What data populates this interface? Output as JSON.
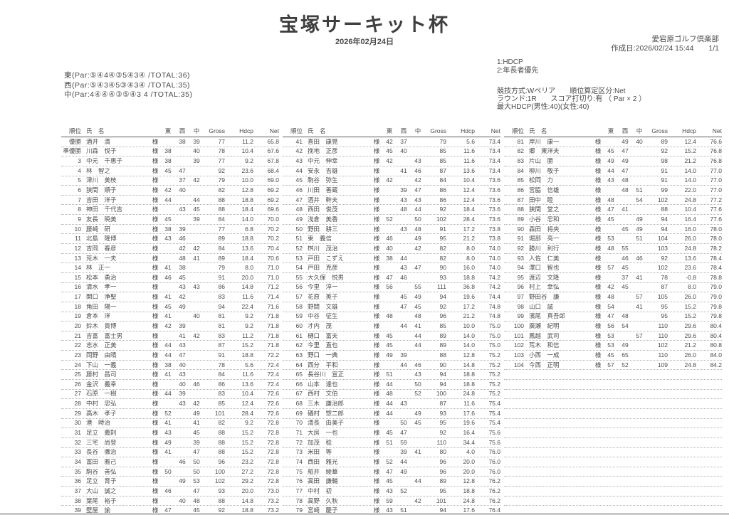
{
  "title": "宝塚サーキット杯",
  "date": "2026年02月24日",
  "club": "愛宕原ゴルフ倶楽部",
  "created": "作成日:2026/02/24 15:44",
  "page_number": "1/1",
  "tie_rules": {
    "line1": "1:HDCP",
    "line2": "2:年長者優先"
  },
  "course": {
    "east": "東(Par:⑤④4④③5④3④ /TOTAL:36)",
    "west": "西(Par:⑤④3④5③④3④ /TOTAL:35)",
    "center": "中(Par:4④④④③⑤④3 4 /TOTAL:35)"
  },
  "competition": {
    "method_line": "競技方式:Wペリア　　順位算定区分:Net",
    "round_line": "ラウンド:1R　　スコア打切り:有 （ Par × 2 ）",
    "hdcp_line": "最大HDCP(男性:40)(女性:40)"
  },
  "table": {
    "headers": {
      "rank": "順位",
      "name": "氏　名",
      "east": "東",
      "west": "西",
      "center": "中",
      "gross": "Gross",
      "hdcp": "Hdcp",
      "net": "Net"
    },
    "honorific": "様",
    "empty_rows_last_group": 16,
    "groups": [
      [
        [
          "優勝",
          "酒井　清",
          "",
          "38",
          "39",
          "77",
          "11.2",
          "65.8"
        ],
        [
          "準優勝",
          "川森　悦子",
          "38",
          "",
          "40",
          "78",
          "10.4",
          "67.6"
        ],
        [
          "3",
          "中元　千惠子",
          "38",
          "",
          "39",
          "77",
          "9.2",
          "67.8"
        ],
        [
          "4",
          "林　智之",
          "45",
          "47",
          "",
          "92",
          "23.6",
          "68.4"
        ],
        [
          "5",
          "津川　美枝",
          "",
          "37",
          "42",
          "79",
          "10.0",
          "69.0"
        ],
        [
          "6",
          "狭間　順子",
          "42",
          "40",
          "",
          "82",
          "12.8",
          "69.2"
        ],
        [
          "7",
          "吉田　洋子",
          "44",
          "",
          "44",
          "88",
          "18.8",
          "69.2"
        ],
        [
          "8",
          "神田　千代吉",
          "",
          "43",
          "45",
          "88",
          "18.4",
          "69.6"
        ],
        [
          "9",
          "友長　暁美",
          "45",
          "",
          "39",
          "84",
          "14.0",
          "70.0"
        ],
        [
          "10",
          "藤崎　研",
          "38",
          "39",
          "",
          "77",
          "6.8",
          "70.2"
        ],
        [
          "11",
          "北島　隆博",
          "43",
          "46",
          "",
          "89",
          "18.8",
          "70.2"
        ],
        [
          "12",
          "吉岡　春彦",
          "",
          "42",
          "42",
          "84",
          "13.6",
          "70.4"
        ],
        [
          "13",
          "荒木　一夫",
          "",
          "48",
          "41",
          "89",
          "18.4",
          "70.6"
        ],
        [
          "14",
          "林　正一",
          "41",
          "38",
          "",
          "79",
          "8.0",
          "71.0"
        ],
        [
          "15",
          "松本　勇治",
          "46",
          "45",
          "",
          "91",
          "20.0",
          "71.0"
        ],
        [
          "16",
          "清水　孝一",
          "",
          "43",
          "43",
          "86",
          "14.8",
          "71.2"
        ],
        [
          "17",
          "関口　浄聖",
          "41",
          "42",
          "",
          "83",
          "11.6",
          "71.4"
        ],
        [
          "18",
          "角田　陽一",
          "45",
          "49",
          "",
          "94",
          "22.4",
          "71.6"
        ],
        [
          "19",
          "倉本　洋",
          "41",
          "",
          "40",
          "81",
          "9.2",
          "71.8"
        ],
        [
          "20",
          "鈴木　貴博",
          "42",
          "39",
          "",
          "81",
          "9.2",
          "71.8"
        ],
        [
          "21",
          "吉富　富士男",
          "",
          "41",
          "42",
          "83",
          "11.2",
          "71.8"
        ],
        [
          "22",
          "志水　正美",
          "44",
          "43",
          "",
          "87",
          "15.2",
          "71.8"
        ],
        [
          "23",
          "岡野　由晴",
          "44",
          "47",
          "",
          "91",
          "18.8",
          "72.2"
        ],
        [
          "24",
          "下山　一義",
          "38",
          "40",
          "",
          "78",
          "5.6",
          "72.4"
        ],
        [
          "25",
          "藤村　昌司",
          "41",
          "43",
          "",
          "84",
          "11.6",
          "72.4"
        ],
        [
          "26",
          "金沢　義幸",
          "",
          "40",
          "46",
          "86",
          "13.6",
          "72.4"
        ],
        [
          "27",
          "石原　一樹",
          "44",
          "39",
          "",
          "83",
          "10.4",
          "72.6"
        ],
        [
          "28",
          "中村　忠弘",
          "",
          "43",
          "42",
          "85",
          "12.4",
          "72.6"
        ],
        [
          "29",
          "高木　孝子",
          "52",
          "",
          "49",
          "101",
          "28.4",
          "72.6"
        ],
        [
          "30",
          "港　時治",
          "41",
          "",
          "41",
          "82",
          "9.2",
          "72.8"
        ],
        [
          "31",
          "足立　義則",
          "43",
          "",
          "45",
          "88",
          "15.2",
          "72.8"
        ],
        [
          "32",
          "三宅　尚登",
          "49",
          "",
          "39",
          "88",
          "15.2",
          "72.8"
        ],
        [
          "33",
          "長谷　徹治",
          "41",
          "",
          "47",
          "88",
          "15.2",
          "72.8"
        ],
        [
          "34",
          "富田　雅己",
          "",
          "46",
          "50",
          "96",
          "23.2",
          "72.8"
        ],
        [
          "35",
          "駒谷　善弘",
          "50",
          "",
          "50",
          "100",
          "27.2",
          "72.8"
        ],
        [
          "36",
          "足立　育子",
          "",
          "49",
          "53",
          "102",
          "29.2",
          "72.8"
        ],
        [
          "37",
          "大山　誠之",
          "46",
          "",
          "47",
          "93",
          "20.0",
          "73.0"
        ],
        [
          "38",
          "葉尾　裕子",
          "",
          "40",
          "48",
          "88",
          "14.8",
          "73.2"
        ],
        [
          "39",
          "壁屋　諭",
          "47",
          "",
          "45",
          "92",
          "18.8",
          "73.2"
        ],
        [
          "40",
          "河合　正幸",
          "50",
          "",
          "48",
          "98",
          "24.8",
          "73.2"
        ]
      ],
      [
        [
          "41",
          "喜田　康晃",
          "42",
          "37",
          "",
          "79",
          "5.6",
          "73.4"
        ],
        [
          "42",
          "挽地　正彦",
          "45",
          "40",
          "",
          "85",
          "11.6",
          "73.4"
        ],
        [
          "43",
          "中元　伸幸",
          "42",
          "",
          "43",
          "85",
          "11.6",
          "73.4"
        ],
        [
          "44",
          "安永　吉雄",
          "",
          "41",
          "46",
          "87",
          "13.6",
          "73.4"
        ],
        [
          "45",
          "駒谷　弥生",
          "42",
          "",
          "42",
          "84",
          "10.4",
          "73.6"
        ],
        [
          "46",
          "川田　善蔵",
          "",
          "39",
          "47",
          "86",
          "12.4",
          "73.6"
        ],
        [
          "47",
          "酒井　幹夫",
          "",
          "43",
          "43",
          "86",
          "12.4",
          "73.6"
        ],
        [
          "48",
          "西田　俊茂",
          "",
          "48",
          "44",
          "92",
          "18.4",
          "73.6"
        ],
        [
          "49",
          "浅倉　美香",
          "52",
          "",
          "50",
          "102",
          "28.4",
          "73.6"
        ],
        [
          "50",
          "野田　耕三",
          "",
          "43",
          "48",
          "91",
          "17.2",
          "73.8"
        ],
        [
          "51",
          "東　義信",
          "46",
          "",
          "49",
          "95",
          "21.2",
          "73.8"
        ],
        [
          "52",
          "桝川　茂治",
          "40",
          "",
          "42",
          "82",
          "8.0",
          "74.0"
        ],
        [
          "53",
          "戸田　こずえ",
          "38",
          "44",
          "",
          "82",
          "8.0",
          "74.0"
        ],
        [
          "54",
          "戸田　克彦",
          "",
          "43",
          "47",
          "90",
          "16.0",
          "74.0"
        ],
        [
          "55",
          "大久保　悦男",
          "47",
          "46",
          "",
          "93",
          "18.8",
          "74.2"
        ],
        [
          "56",
          "今里　淳一",
          "56",
          "",
          "55",
          "111",
          "36.8",
          "74.2"
        ],
        [
          "57",
          "花原　英子",
          "",
          "45",
          "49",
          "94",
          "19.6",
          "74.4"
        ],
        [
          "58",
          "野間　文雄",
          "",
          "47",
          "45",
          "92",
          "17.2",
          "74.8"
        ],
        [
          "59",
          "中谷　征生",
          "48",
          "",
          "48",
          "96",
          "21.2",
          "74.8"
        ],
        [
          "60",
          "才内　茂",
          "",
          "44",
          "41",
          "85",
          "10.0",
          "75.0"
        ],
        [
          "61",
          "樋口　富夫",
          "45",
          "",
          "44",
          "89",
          "14.0",
          "75.0"
        ],
        [
          "62",
          "今里　直也",
          "45",
          "",
          "44",
          "89",
          "14.0",
          "75.0"
        ],
        [
          "63",
          "野口　一典",
          "49",
          "39",
          "",
          "88",
          "12.8",
          "75.2"
        ],
        [
          "64",
          "西分　平和",
          "",
          "44",
          "46",
          "90",
          "14.8",
          "75.2"
        ],
        [
          "65",
          "長谷川　宣正",
          "51",
          "",
          "43",
          "94",
          "18.8",
          "75.2"
        ],
        [
          "66",
          "山本　達也",
          "44",
          "",
          "50",
          "94",
          "18.8",
          "75.2"
        ],
        [
          "67",
          "西村　文伯",
          "48",
          "",
          "52",
          "100",
          "24.8",
          "75.2"
        ],
        [
          "68",
          "三木　謙治郎",
          "44",
          "43",
          "",
          "87",
          "11.6",
          "75.4"
        ],
        [
          "69",
          "礒村　惣二郎",
          "44",
          "",
          "49",
          "93",
          "17.6",
          "75.4"
        ],
        [
          "70",
          "清長　由美子",
          "",
          "50",
          "45",
          "95",
          "19.6",
          "75.4"
        ],
        [
          "71",
          "大房　一也",
          "45",
          "47",
          "",
          "92",
          "16.4",
          "75.6"
        ],
        [
          "72",
          "加茂　稔",
          "51",
          "59",
          "",
          "110",
          "34.4",
          "75.6"
        ],
        [
          "73",
          "米田　等",
          "",
          "39",
          "41",
          "80",
          "4.0",
          "76.0"
        ],
        [
          "74",
          "西田　雅光",
          "52",
          "44",
          "",
          "96",
          "20.0",
          "76.0"
        ],
        [
          "75",
          "船井　綾華",
          "47",
          "49",
          "",
          "96",
          "20.0",
          "76.0"
        ],
        [
          "76",
          "高田　謙輔",
          "45",
          "",
          "44",
          "89",
          "12.8",
          "76.2"
        ],
        [
          "77",
          "中村　初",
          "43",
          "52",
          "",
          "95",
          "18.8",
          "76.2"
        ],
        [
          "78",
          "高野　久秋",
          "59",
          "",
          "42",
          "101",
          "24.8",
          "76.2"
        ],
        [
          "79",
          "宮崎　慶子",
          "43",
          "51",
          "",
          "94",
          "17.6",
          "76.4"
        ],
        [
          "80",
          "入佐　肇",
          "",
          "48",
          "54",
          "102",
          "25.6",
          "76.4"
        ]
      ],
      [
        [
          "81",
          "岸川　康一",
          "",
          "49",
          "40",
          "89",
          "12.4",
          "76.6"
        ],
        [
          "82",
          "郷　東洋夫",
          "45",
          "47",
          "",
          "92",
          "15.2",
          "76.8"
        ],
        [
          "83",
          "片山　勝",
          "49",
          "49",
          "",
          "98",
          "21.2",
          "76.8"
        ],
        [
          "84",
          "柳川　敬子",
          "44",
          "47",
          "",
          "91",
          "14.0",
          "77.0"
        ],
        [
          "85",
          "松岡　力",
          "43",
          "48",
          "",
          "91",
          "14.0",
          "77.0"
        ],
        [
          "86",
          "宮脇　信雄",
          "",
          "48",
          "51",
          "99",
          "22.0",
          "77.0"
        ],
        [
          "87",
          "田中　睦",
          "48",
          "",
          "54",
          "102",
          "24.8",
          "77.2"
        ],
        [
          "88",
          "狭間　堂之",
          "47",
          "41",
          "",
          "88",
          "10.4",
          "77.6"
        ],
        [
          "89",
          "小谷　忠和",
          "45",
          "",
          "49",
          "94",
          "16.4",
          "77.6"
        ],
        [
          "90",
          "森田　将央",
          "",
          "45",
          "49",
          "94",
          "16.0",
          "78.0"
        ],
        [
          "91",
          "堀部　亮一",
          "53",
          "",
          "51",
          "104",
          "26.0",
          "78.0"
        ],
        [
          "92",
          "勝川　利行",
          "48",
          "55",
          "",
          "103",
          "24.8",
          "78.2"
        ],
        [
          "93",
          "入佐　仁美",
          "",
          "46",
          "46",
          "92",
          "13.6",
          "78.4"
        ],
        [
          "94",
          "澤口　智也",
          "57",
          "45",
          "",
          "102",
          "23.6",
          "78.4"
        ],
        [
          "95",
          "渡辺　文隆",
          "",
          "37",
          "41",
          "78",
          "-0.8",
          "78.8"
        ],
        [
          "96",
          "村上　幸弘",
          "42",
          "45",
          "",
          "87",
          "8.0",
          "79.0"
        ],
        [
          "97",
          "野田谷　謙",
          "48",
          "",
          "57",
          "105",
          "26.0",
          "79.0"
        ],
        [
          "98",
          "山口　誠",
          "54",
          "",
          "41",
          "95",
          "15.2",
          "79.8"
        ],
        [
          "99",
          "濱尾　真吾郎",
          "47",
          "48",
          "",
          "95",
          "15.2",
          "79.8"
        ],
        [
          "100",
          "廣瀬　紀明",
          "56",
          "54",
          "",
          "110",
          "29.6",
          "80.4"
        ],
        [
          "101",
          "鳳越　武司",
          "53",
          "",
          "57",
          "110",
          "29.6",
          "80.4"
        ],
        [
          "102",
          "荒木　和信",
          "53",
          "49",
          "",
          "102",
          "21.2",
          "80.8"
        ],
        [
          "103",
          "小西　一成",
          "45",
          "65",
          "",
          "110",
          "26.0",
          "84.0"
        ],
        [
          "104",
          "今西　正明",
          "57",
          "52",
          "",
          "109",
          "24.8",
          "84.2"
        ]
      ]
    ]
  }
}
